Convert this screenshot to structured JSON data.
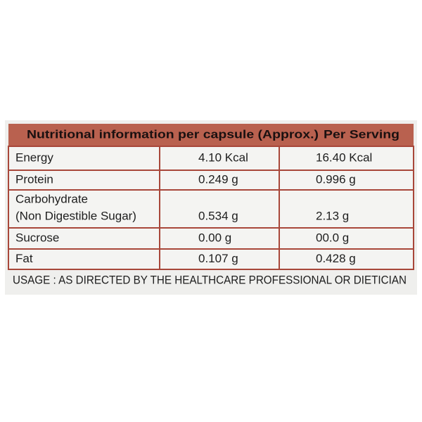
{
  "table": {
    "header": [
      "Nutritional information per capsule (Approx.)",
      "Per Serving"
    ],
    "rows": [
      [
        [
          "Energy"
        ],
        "4.10 Kcal",
        "16.40 Kcal"
      ],
      [
        [
          "Protein"
        ],
        "0.249 g",
        "0.996 g"
      ],
      [
        [
          "Carbohydrate",
          "(Non Digestible Sugar)"
        ],
        "0.534 g",
        "2.13 g"
      ],
      [
        [
          "Sucrose"
        ],
        "0.00 g",
        "00.0 g"
      ],
      [
        [
          "Fat"
        ],
        "0.107 g",
        "0.428 g"
      ]
    ]
  },
  "usage": "USAGE : AS DIRECTED BY THE HEALTHCARE PROFESSIONAL OR DIETICIAN"
}
